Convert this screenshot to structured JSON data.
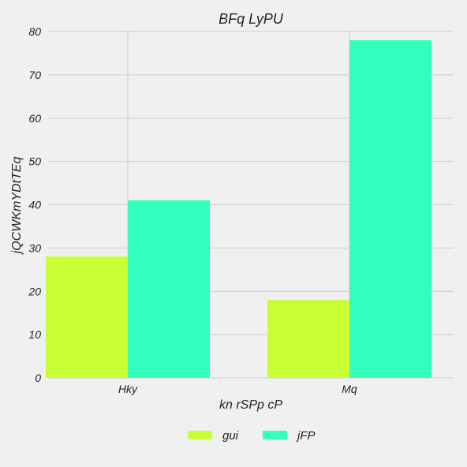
{
  "chart_data": {
    "type": "bar",
    "title": "BFq LyPU",
    "xlabel": "kn rSPp cP",
    "ylabel": "jQCWKmYDtTEq",
    "categories": [
      "Hky",
      "Mq"
    ],
    "series": [
      {
        "name": "gui",
        "values": [
          28,
          18
        ],
        "color": "#c8ff33"
      },
      {
        "name": "jFP",
        "values": [
          41,
          78
        ],
        "color": "#33ffbf"
      }
    ],
    "ylim": [
      0,
      80
    ],
    "yticks": [
      0,
      10,
      20,
      30,
      40,
      50,
      60,
      70,
      80
    ],
    "grid": true,
    "legend_position": "bottom-center"
  },
  "colors": {
    "background": "#f0f0f0",
    "grid": "#cbcbcb",
    "text": "#222222"
  }
}
